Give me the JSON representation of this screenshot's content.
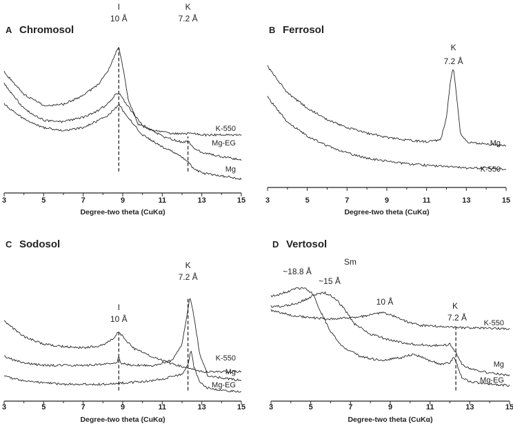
{
  "chart_data": [
    {
      "type": "line",
      "panel": "A",
      "title": "Chromosol",
      "xlabel": "Degree-two theta (CuKα)",
      "xlim": [
        3,
        15
      ],
      "xticks": [
        3,
        5,
        7,
        9,
        11,
        13,
        15
      ],
      "series": [
        {
          "name": "K-550",
          "x": [
            3,
            4,
            5,
            6,
            7,
            7.8,
            8.3,
            8.6,
            8.8,
            9.0,
            9.3,
            9.8,
            10.5,
            11.5,
            12.3,
            12.5,
            13,
            14,
            15
          ],
          "y": [
            0.78,
            0.63,
            0.55,
            0.56,
            0.62,
            0.7,
            0.8,
            0.9,
            0.96,
            0.82,
            0.58,
            0.42,
            0.38,
            0.36,
            0.36,
            0.36,
            0.35,
            0.35,
            0.35
          ]
        },
        {
          "name": "Mg-EG",
          "x": [
            3,
            4,
            5,
            6,
            7,
            7.8,
            8.3,
            8.6,
            8.8,
            9.0,
            9.5,
            10,
            11,
            12,
            12.3,
            12.5,
            13,
            14,
            15
          ],
          "y": [
            0.7,
            0.53,
            0.45,
            0.44,
            0.47,
            0.52,
            0.57,
            0.62,
            0.64,
            0.6,
            0.5,
            0.42,
            0.34,
            0.3,
            0.31,
            0.27,
            0.23,
            0.2,
            0.18
          ]
        },
        {
          "name": "Mg",
          "x": [
            3,
            4,
            5,
            6,
            7,
            7.8,
            8.3,
            8.6,
            8.8,
            9.0,
            9.5,
            10,
            11,
            12,
            12.3,
            12.5,
            13,
            14,
            15
          ],
          "y": [
            0.56,
            0.46,
            0.4,
            0.38,
            0.4,
            0.45,
            0.49,
            0.53,
            0.56,
            0.52,
            0.43,
            0.35,
            0.27,
            0.2,
            0.17,
            0.13,
            0.09,
            0.07,
            0.05
          ]
        }
      ],
      "annotations": [
        {
          "text": "I",
          "x": 8.8,
          "row": 0
        },
        {
          "text": "10 Å",
          "x": 8.8,
          "row": 1
        },
        {
          "text": "K",
          "x": 12.3,
          "row": 0
        },
        {
          "text": "7.2 Å",
          "x": 12.3,
          "row": 1
        }
      ],
      "reference_lines": [
        {
          "x": 8.8,
          "from": 0.1,
          "to": 0.95
        },
        {
          "x": 12.3,
          "from": 0.1,
          "to": 0.34
        }
      ]
    },
    {
      "type": "line",
      "panel": "B",
      "title": "Ferrosol",
      "xlabel": "Degree-two theta (CuKα)",
      "xlim": [
        3,
        15
      ],
      "xticks": [
        3,
        5,
        7,
        9,
        11,
        13,
        15
      ],
      "series": [
        {
          "name": "Mg",
          "x": [
            3,
            4,
            5,
            6,
            7,
            8,
            9,
            10,
            11,
            11.7,
            12.0,
            12.2,
            12.35,
            12.5,
            12.7,
            13,
            14,
            15
          ],
          "y": [
            0.82,
            0.63,
            0.52,
            0.44,
            0.38,
            0.34,
            0.31,
            0.29,
            0.28,
            0.29,
            0.45,
            0.72,
            0.82,
            0.62,
            0.34,
            0.28,
            0.26,
            0.25
          ]
        },
        {
          "name": "K-550",
          "x": [
            3,
            4,
            5,
            6,
            7,
            8,
            9,
            10,
            11,
            12,
            13,
            14,
            15
          ],
          "y": [
            0.6,
            0.42,
            0.32,
            0.25,
            0.2,
            0.16,
            0.14,
            0.12,
            0.11,
            0.1,
            0.09,
            0.09,
            0.08
          ]
        }
      ],
      "annotations": [
        {
          "text": "K",
          "x": 12.35,
          "row": 0
        },
        {
          "text": "7.2 Å",
          "x": 12.35,
          "row": 1
        }
      ],
      "reference_lines": []
    },
    {
      "type": "line",
      "panel": "C",
      "title": "Sodosol",
      "xlabel": "Degree-two theta (CuKα)",
      "xlim": [
        3,
        15
      ],
      "xticks": [
        3,
        5,
        7,
        9,
        11,
        13,
        15
      ],
      "series": [
        {
          "name": "K-550",
          "x": [
            3,
            4,
            5,
            6,
            7,
            8,
            8.5,
            8.8,
            9.1,
            9.6,
            10.5,
            11.5,
            12.3,
            13,
            14,
            15
          ],
          "y": [
            0.58,
            0.46,
            0.4,
            0.38,
            0.37,
            0.39,
            0.44,
            0.5,
            0.44,
            0.36,
            0.3,
            0.24,
            0.21,
            0.18,
            0.18,
            0.18
          ]
        },
        {
          "name": "Mg",
          "x": [
            3,
            4,
            5,
            6,
            7,
            8,
            8.7,
            8.8,
            8.9,
            9.5,
            10.5,
            11.5,
            12.0,
            12.25,
            12.4,
            12.6,
            12.9,
            13.3,
            14,
            15
          ],
          "y": [
            0.3,
            0.25,
            0.23,
            0.23,
            0.23,
            0.24,
            0.25,
            0.31,
            0.25,
            0.23,
            0.23,
            0.27,
            0.4,
            0.62,
            0.78,
            0.62,
            0.32,
            0.15,
            0.13,
            0.11
          ]
        },
        {
          "name": "Mg-EG",
          "x": [
            3,
            4,
            5,
            6,
            7,
            8,
            9,
            10,
            11,
            12,
            12.3,
            12.45,
            12.6,
            12.9,
            13.3,
            14,
            15
          ],
          "y": [
            0.14,
            0.11,
            0.09,
            0.08,
            0.08,
            0.08,
            0.09,
            0.1,
            0.12,
            0.16,
            0.24,
            0.35,
            0.22,
            0.1,
            0.05,
            0.03,
            0.02
          ]
        }
      ],
      "annotations": [
        {
          "text": "I",
          "x": 8.8,
          "row": 0
        },
        {
          "text": "10 Å",
          "x": 8.8,
          "row": 1
        },
        {
          "text": "K",
          "x": 12.3,
          "row": 2
        },
        {
          "text": "7.2 Å",
          "x": 12.3,
          "row": 3
        }
      ],
      "reference_lines": [
        {
          "x": 8.8,
          "from": 0.03,
          "to": 0.5
        },
        {
          "x": 12.3,
          "from": 0.03,
          "to": 0.76
        }
      ]
    },
    {
      "type": "line",
      "panel": "D",
      "title": "Vertosol",
      "xlabel": "Degree-two theta (CuKα)",
      "xlim": [
        3,
        15
      ],
      "xticks": [
        3,
        5,
        7,
        9,
        11,
        13,
        15
      ],
      "series": [
        {
          "name": "Mg-EG",
          "x": [
            3,
            3.5,
            4.2,
            4.7,
            5.1,
            5.5,
            6.0,
            6.6,
            7.5,
            8.5,
            9.5,
            10.2,
            10.8,
            11.5,
            12.0,
            12.2,
            12.35,
            12.6,
            13,
            14,
            15
          ],
          "y": [
            0.78,
            0.8,
            0.84,
            0.85,
            0.8,
            0.66,
            0.5,
            0.38,
            0.3,
            0.27,
            0.29,
            0.32,
            0.28,
            0.24,
            0.25,
            0.3,
            0.24,
            0.13,
            0.1,
            0.08,
            0.07
          ]
        },
        {
          "name": "Mg",
          "x": [
            3,
            3.5,
            4.2,
            4.8,
            5.3,
            5.7,
            6.2,
            6.7,
            7.2,
            8,
            9,
            10,
            11,
            11.8,
            12.0,
            12.3,
            12.6,
            13,
            14,
            15
          ],
          "y": [
            0.7,
            0.7,
            0.72,
            0.76,
            0.8,
            0.81,
            0.77,
            0.68,
            0.56,
            0.48,
            0.43,
            0.4,
            0.39,
            0.39,
            0.4,
            0.33,
            0.24,
            0.2,
            0.17,
            0.15
          ]
        },
        {
          "name": "K-550",
          "x": [
            3,
            4,
            5,
            6,
            7,
            7.6,
            8.2,
            8.7,
            9.2,
            9.8,
            10.5,
            11.5,
            12.5,
            13.5,
            15
          ],
          "y": [
            0.67,
            0.63,
            0.61,
            0.6,
            0.61,
            0.62,
            0.64,
            0.65,
            0.62,
            0.58,
            0.55,
            0.54,
            0.53,
            0.53,
            0.52
          ]
        }
      ],
      "annotations": [
        {
          "text": "~18.8 Å",
          "x": 4.7,
          "row": 4
        },
        {
          "text": "Sm",
          "x": 7.3,
          "row": 2
        },
        {
          "text": "~15 Å",
          "x": 6.0,
          "row": 5
        },
        {
          "text": "10 Å",
          "x": 8.7,
          "row": 6
        },
        {
          "text": "K",
          "x": 12.3,
          "row": 7
        },
        {
          "text": "7.2 Å",
          "x": 12.3,
          "row": 8
        }
      ],
      "reference_lines": [
        {
          "x": 12.3,
          "from": 0.03,
          "to": 0.54
        }
      ]
    }
  ]
}
